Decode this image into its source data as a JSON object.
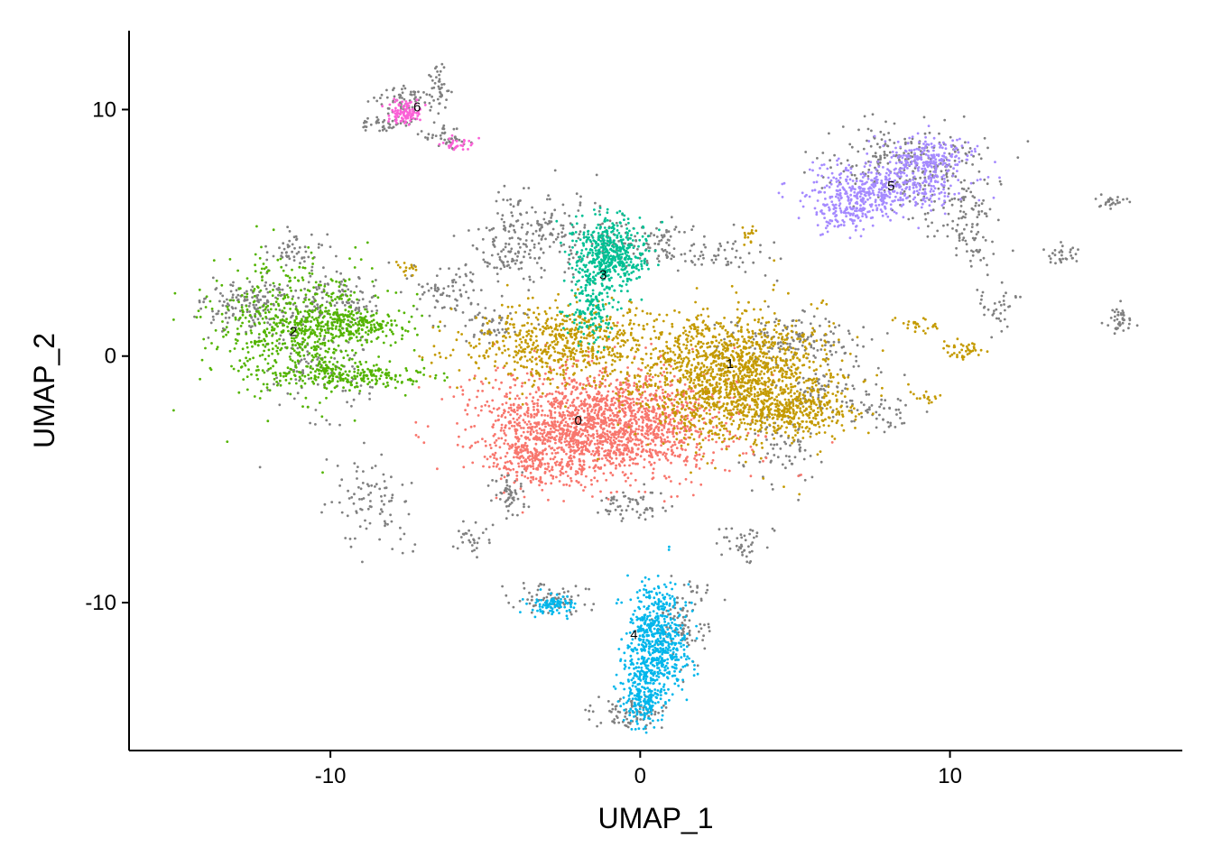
{
  "chart_data": {
    "type": "scatter",
    "title": "",
    "xlabel": "UMAP_1",
    "ylabel": "UMAP_2",
    "xlim": [
      -16.5,
      17.5
    ],
    "ylim": [
      -16.0,
      13.2
    ],
    "x_ticks": [
      {
        "value": -10,
        "label": "-10"
      },
      {
        "value": 0,
        "label": "0"
      },
      {
        "value": 10,
        "label": "10"
      }
    ],
    "y_ticks": [
      {
        "value": -10,
        "label": "-10"
      },
      {
        "value": 0,
        "label": "0"
      },
      {
        "value": 10,
        "label": "10"
      }
    ],
    "grid": false,
    "legend": "none",
    "background_color": "#808080",
    "clusters": [
      {
        "label": "0",
        "color": "#F8766D",
        "label_x": -2.0,
        "label_y": -2.6
      },
      {
        "label": "1",
        "color": "#C49A00",
        "label_x": 2.9,
        "label_y": -0.3
      },
      {
        "label": "2",
        "color": "#53B400",
        "label_x": -11.2,
        "label_y": 1.0
      },
      {
        "label": "3",
        "color": "#00C094",
        "label_x": -1.2,
        "label_y": 3.3
      },
      {
        "label": "4",
        "color": "#00B6EB",
        "label_x": -0.2,
        "label_y": -11.3
      },
      {
        "label": "5",
        "color": "#A58AFF",
        "label_x": 8.1,
        "label_y": 6.9
      },
      {
        "label": "6",
        "color": "#FB61D7",
        "label_x": -7.2,
        "label_y": 10.1
      }
    ]
  }
}
